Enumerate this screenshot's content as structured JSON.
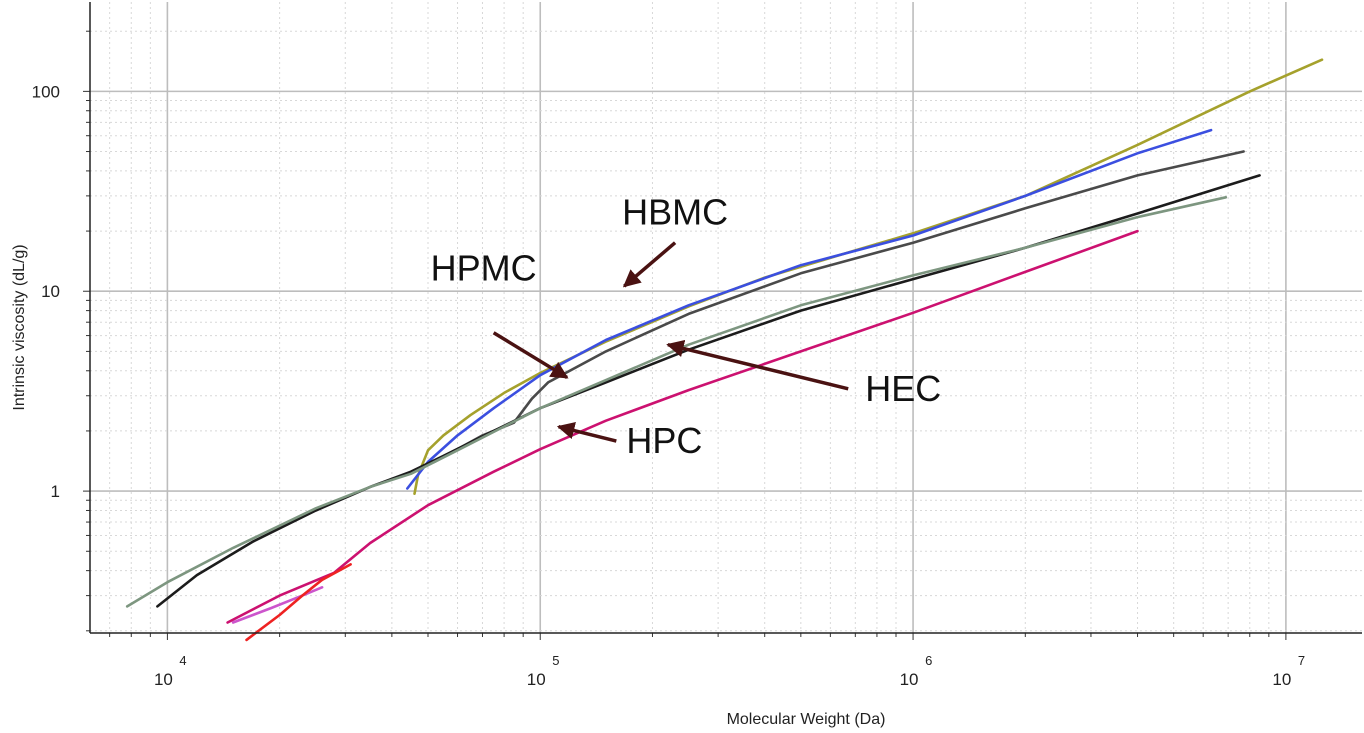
{
  "chart_data": {
    "type": "line",
    "xlabel": "Molecular Weight (Da)",
    "ylabel": "Intrinsic viscosity (dL/g)",
    "x_scale": "log",
    "y_scale": "log",
    "xlim": [
      6200,
      16000000
    ],
    "ylim": [
      0.195,
      280
    ],
    "grid": true,
    "x_ticks": [
      {
        "value": 10000,
        "base": "10",
        "exp": "4"
      },
      {
        "value": 100000,
        "base": "10",
        "exp": "5"
      },
      {
        "value": 1000000,
        "base": "10",
        "exp": "6"
      },
      {
        "value": 10000000,
        "base": "10",
        "exp": "7"
      }
    ],
    "y_ticks": [
      {
        "value": 1,
        "label": "1"
      },
      {
        "value": 10,
        "label": "10"
      },
      {
        "value": 100,
        "label": "100"
      }
    ],
    "series": [
      {
        "color": "#a5a12c",
        "points": [
          [
            46000,
            0.97
          ],
          [
            47000,
            1.2
          ],
          [
            50000,
            1.6
          ],
          [
            55000,
            1.9
          ],
          [
            65000,
            2.4
          ],
          [
            80000,
            3.1
          ],
          [
            100000,
            3.9
          ],
          [
            150000,
            5.6
          ],
          [
            250000,
            8.4
          ],
          [
            400000,
            11.7
          ],
          [
            700000,
            16
          ],
          [
            1000000,
            19.5
          ],
          [
            2000000,
            30
          ],
          [
            4000000,
            54
          ],
          [
            8000000,
            100
          ],
          [
            12500000,
            144
          ]
        ]
      },
      {
        "color": "#3b4fe0",
        "points": [
          [
            44000,
            1.03
          ],
          [
            50000,
            1.4
          ],
          [
            60000,
            1.9
          ],
          [
            75000,
            2.6
          ],
          [
            100000,
            3.8
          ],
          [
            150000,
            5.7
          ],
          [
            250000,
            8.5
          ],
          [
            500000,
            13.5
          ],
          [
            1000000,
            19
          ],
          [
            2000000,
            30
          ],
          [
            4000000,
            49
          ],
          [
            6300000,
            64
          ]
        ]
      },
      {
        "color": "#4a4a4a",
        "points": [
          [
            52000,
            1.4
          ],
          [
            70000,
            1.9
          ],
          [
            85000,
            2.2
          ],
          [
            95000,
            2.9
          ],
          [
            105000,
            3.5
          ],
          [
            150000,
            5
          ],
          [
            250000,
            7.7
          ],
          [
            500000,
            12.3
          ],
          [
            1000000,
            17.5
          ],
          [
            2000000,
            26
          ],
          [
            4000000,
            38
          ],
          [
            7700000,
            50
          ]
        ]
      },
      {
        "color": "#1c1c1c",
        "points": [
          [
            9400,
            0.265
          ],
          [
            12000,
            0.38
          ],
          [
            17000,
            0.56
          ],
          [
            25000,
            0.8
          ],
          [
            35000,
            1.05
          ],
          [
            45000,
            1.25
          ],
          [
            55000,
            1.5
          ],
          [
            75000,
            2
          ],
          [
            100000,
            2.6
          ],
          [
            150000,
            3.5
          ],
          [
            250000,
            5.1
          ],
          [
            500000,
            8
          ],
          [
            1000000,
            11.5
          ],
          [
            2000000,
            16.5
          ],
          [
            4000000,
            24.5
          ],
          [
            8500000,
            38
          ]
        ]
      },
      {
        "color": "#7d9680",
        "points": [
          [
            7800,
            0.265
          ],
          [
            10000,
            0.35
          ],
          [
            15000,
            0.52
          ],
          [
            25000,
            0.82
          ],
          [
            35000,
            1.05
          ],
          [
            45000,
            1.22
          ],
          [
            60000,
            1.6
          ],
          [
            100000,
            2.6
          ],
          [
            250000,
            5.4
          ],
          [
            500000,
            8.5
          ],
          [
            1000000,
            12
          ],
          [
            2000000,
            16.5
          ],
          [
            4000000,
            23.5
          ],
          [
            6900000,
            29.5
          ]
        ]
      },
      {
        "color": "#cc1170",
        "points": [
          [
            14500,
            0.22
          ],
          [
            20000,
            0.3
          ],
          [
            28000,
            0.39
          ],
          [
            35000,
            0.55
          ],
          [
            50000,
            0.85
          ],
          [
            75000,
            1.25
          ],
          [
            100000,
            1.62
          ],
          [
            150000,
            2.25
          ],
          [
            250000,
            3.2
          ],
          [
            500000,
            5
          ],
          [
            1000000,
            7.8
          ],
          [
            2000000,
            12.5
          ],
          [
            4000000,
            20
          ]
        ]
      },
      {
        "color": "#cc55cc",
        "points": [
          [
            15000,
            0.22
          ],
          [
            19000,
            0.26
          ],
          [
            23000,
            0.3
          ],
          [
            26000,
            0.33
          ]
        ]
      },
      {
        "color": "#ee2222",
        "points": [
          [
            16300,
            0.18
          ],
          [
            20000,
            0.24
          ],
          [
            23000,
            0.3
          ],
          [
            26000,
            0.36
          ],
          [
            31000,
            0.43
          ]
        ]
      }
    ],
    "annotations": [
      {
        "text": "HBMC",
        "arrow_from": [
          230000,
          17.5
        ],
        "arrow_to": [
          168000,
          10.6
        ]
      },
      {
        "text": "HPMC",
        "arrow_from": [
          75000,
          6.2
        ],
        "arrow_to": [
          118000,
          3.7
        ]
      },
      {
        "text": "HEC",
        "arrow_from": [
          670000,
          3.25
        ],
        "arrow_to": [
          220000,
          5.4
        ]
      },
      {
        "text": "HPC",
        "arrow_from": [
          160000,
          1.78
        ],
        "arrow_to": [
          112000,
          2.1
        ]
      }
    ]
  }
}
